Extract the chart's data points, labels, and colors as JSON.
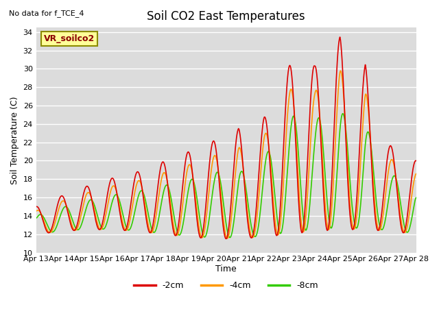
{
  "title": "Soil CO2 East Temperatures",
  "note": "No data for f_TCE_4",
  "ylabel": "Soil Temperature (C)",
  "xlabel": "Time",
  "legend_box_label": "VR_soilco2",
  "ylim": [
    10,
    34.5
  ],
  "yticks": [
    10,
    12,
    14,
    16,
    18,
    20,
    22,
    24,
    26,
    28,
    30,
    32,
    34
  ],
  "xticklabels": [
    "Apr 13",
    "Apr 14",
    "Apr 15",
    "Apr 16",
    "Apr 17",
    "Apr 18",
    "Apr 19",
    "Apr 20",
    "Apr 21",
    "Apr 22",
    "Apr 23",
    "Apr 24",
    "Apr 25",
    "Apr 26",
    "Apr 27",
    "Apr 28"
  ],
  "line_colors": [
    "#dd0000",
    "#ff9900",
    "#33cc00"
  ],
  "line_labels": [
    "-2cm",
    "-4cm",
    "-8cm"
  ],
  "bg_color": "#dcdcdc",
  "fig_bg_color": "#ffffff",
  "linewidth": 1.2
}
